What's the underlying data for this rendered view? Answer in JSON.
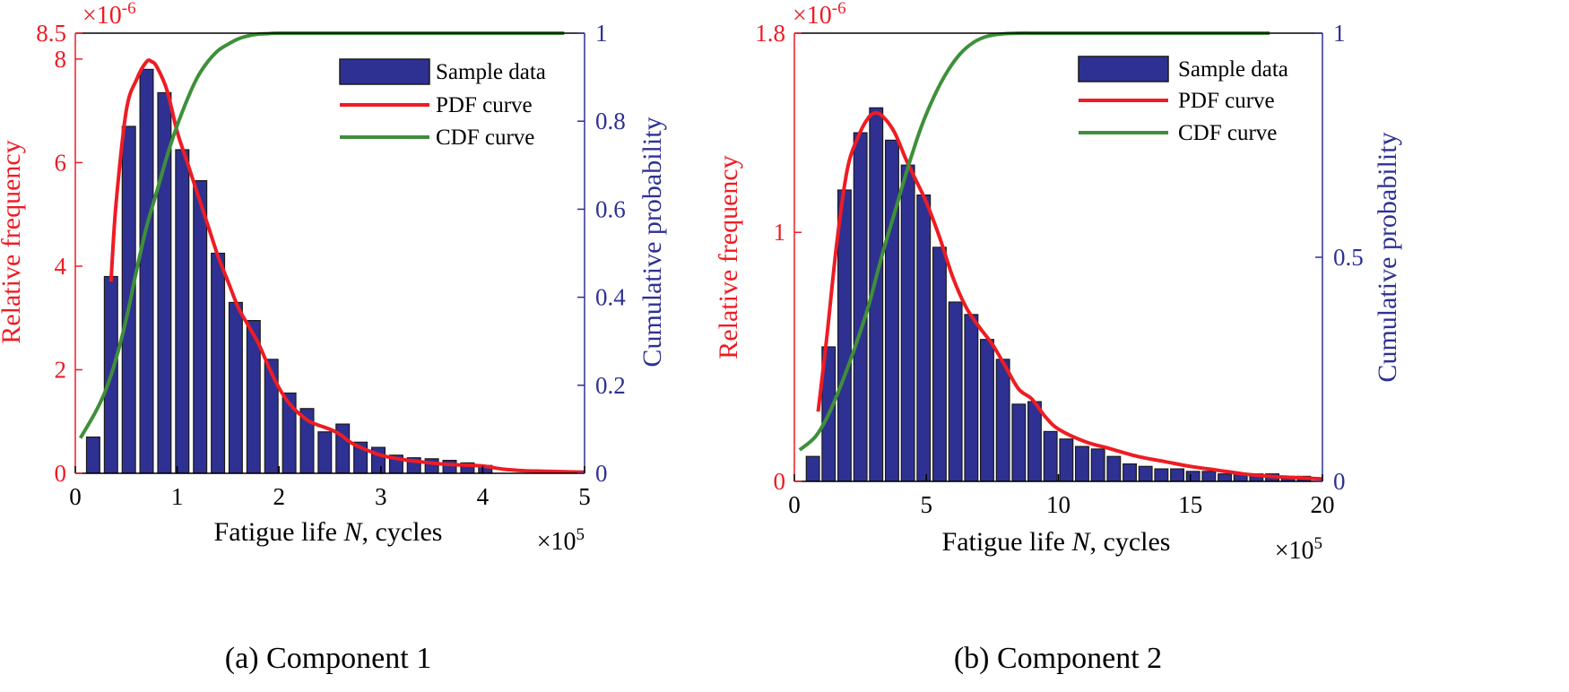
{
  "colors": {
    "bar_fill": "#2e3192",
    "bar_edge": "#1a1a1a",
    "pdf": "#ee1c24",
    "cdf": "#3f8f3a",
    "left_axis": "#ee1c24",
    "right_axis": "#2e3192",
    "frame": "#000000"
  },
  "chart_data": [
    {
      "type": "bar",
      "caption": "(a)  Component 1",
      "xlabel_text": "Fatigue life ",
      "xlabel_var": "N",
      "xlabel_rest": ", cycles",
      "x_multiplier": "×10",
      "x_multiplier_exp": "5",
      "ylabel_left": "Relative frequency",
      "ylabel_right": "Cumulative probability",
      "y_multiplier": "×10",
      "y_multiplier_exp": "-6",
      "xlim": [
        0,
        5
      ],
      "ylim_left": [
        0,
        8.5
      ],
      "ylim_right": [
        0,
        1
      ],
      "xticks": [
        0,
        1,
        2,
        3,
        4,
        5
      ],
      "xtick_labels": [
        "0",
        "1",
        "2",
        "3",
        "4",
        "5"
      ],
      "yticks_left": [
        0,
        2,
        4,
        6,
        8,
        8.5
      ],
      "ytick_labels_left": [
        "0",
        "2",
        "4",
        "6",
        "8",
        "8.5"
      ],
      "yticks_right": [
        0,
        0.2,
        0.4,
        0.6,
        0.8,
        1
      ],
      "ytick_labels_right": [
        "0",
        "0.2",
        "0.4",
        "0.6",
        "0.8",
        "1"
      ],
      "bar_width": 0.13,
      "series": [
        {
          "name": "Sample data",
          "kind": "bar",
          "x": [
            0.175,
            0.35,
            0.525,
            0.7,
            0.875,
            1.05,
            1.225,
            1.4,
            1.575,
            1.75,
            1.925,
            2.1,
            2.275,
            2.45,
            2.625,
            2.8,
            2.975,
            3.15,
            3.325,
            3.5,
            3.675,
            3.85,
            4.025
          ],
          "values": [
            0.7,
            3.8,
            6.7,
            7.8,
            7.35,
            6.25,
            5.65,
            4.25,
            3.3,
            2.95,
            2.2,
            1.55,
            1.25,
            0.8,
            0.95,
            0.6,
            0.5,
            0.35,
            0.3,
            0.28,
            0.25,
            0.2,
            0.15
          ]
        },
        {
          "name": "PDF curve",
          "kind": "line",
          "axis": "left",
          "x": [
            0.35,
            0.4,
            0.5,
            0.6,
            0.7,
            0.75,
            0.8,
            0.9,
            1.0,
            1.1,
            1.2,
            1.3,
            1.4,
            1.5,
            1.6,
            1.7,
            1.8,
            1.9,
            2.0,
            2.1,
            2.2,
            2.3,
            2.4,
            2.5,
            2.6,
            2.7,
            2.8,
            3.0,
            3.2,
            3.4,
            3.6,
            3.8,
            4.0,
            4.2,
            4.4,
            4.6,
            4.8,
            5.0
          ],
          "values": [
            3.7,
            5.2,
            7.0,
            7.6,
            7.95,
            7.95,
            7.85,
            7.4,
            6.6,
            6.0,
            5.4,
            4.8,
            4.2,
            3.7,
            3.2,
            2.85,
            2.5,
            2.05,
            1.65,
            1.35,
            1.15,
            1.0,
            0.92,
            0.85,
            0.75,
            0.6,
            0.5,
            0.35,
            0.27,
            0.22,
            0.18,
            0.16,
            0.14,
            0.08,
            0.05,
            0.04,
            0.03,
            0.02
          ]
        },
        {
          "name": "CDF curve",
          "kind": "line",
          "axis": "right",
          "x": [
            0.05,
            0.2,
            0.3,
            0.4,
            0.5,
            0.6,
            0.7,
            0.8,
            0.9,
            1.0,
            1.1,
            1.2,
            1.3,
            1.4,
            1.5,
            1.6,
            1.7,
            1.8,
            1.9,
            2.0,
            2.5,
            3.0,
            4.0,
            4.8
          ],
          "values": [
            0.08,
            0.14,
            0.19,
            0.26,
            0.35,
            0.46,
            0.56,
            0.64,
            0.72,
            0.79,
            0.85,
            0.9,
            0.935,
            0.96,
            0.975,
            0.987,
            0.994,
            0.998,
            0.999,
            1.0,
            1.0,
            1.0,
            1.0,
            1.0
          ]
        }
      ]
    },
    {
      "type": "bar",
      "caption": "(b)  Component 2",
      "xlabel_text": "Fatigue life ",
      "xlabel_var": "N",
      "xlabel_rest": ", cycles",
      "x_multiplier": "×10",
      "x_multiplier_exp": "5",
      "ylabel_left": "Relative frequency",
      "ylabel_right": "Cumulative probability",
      "y_multiplier": "×10",
      "y_multiplier_exp": "-6",
      "xlim": [
        0,
        20
      ],
      "ylim_left": [
        0,
        1.8
      ],
      "ylim_right": [
        0,
        1
      ],
      "xticks": [
        0,
        5,
        10,
        15,
        20
      ],
      "xtick_labels": [
        "0",
        "5",
        "10",
        "15",
        "20"
      ],
      "yticks_left": [
        0,
        1,
        1.8
      ],
      "ytick_labels_left": [
        "0",
        "1",
        "1.8"
      ],
      "yticks_right": [
        0,
        0.5,
        1
      ],
      "ytick_labels_right": [
        "0",
        "0.5",
        "1"
      ],
      "bar_width": 0.5,
      "series": [
        {
          "name": "Sample data",
          "kind": "bar",
          "x": [
            0.7,
            1.3,
            1.9,
            2.5,
            3.1,
            3.7,
            4.3,
            4.9,
            5.5,
            6.1,
            6.7,
            7.3,
            7.9,
            8.5,
            9.1,
            9.7,
            10.3,
            10.9,
            11.5,
            12.1,
            12.7,
            13.3,
            13.9,
            14.5,
            15.1,
            15.7,
            16.3,
            16.9,
            17.5,
            18.1,
            18.7,
            19.3
          ],
          "values": [
            0.1,
            0.54,
            1.17,
            1.4,
            1.5,
            1.37,
            1.27,
            1.15,
            0.94,
            0.72,
            0.67,
            0.57,
            0.49,
            0.31,
            0.32,
            0.2,
            0.17,
            0.14,
            0.13,
            0.1,
            0.07,
            0.06,
            0.05,
            0.05,
            0.04,
            0.04,
            0.03,
            0.03,
            0.03,
            0.03,
            0.02,
            0.02
          ]
        },
        {
          "name": "PDF curve",
          "kind": "line",
          "axis": "left",
          "x": [
            0.9,
            1.2,
            1.6,
            2.0,
            2.4,
            2.8,
            3.1,
            3.4,
            3.8,
            4.2,
            4.6,
            5.0,
            5.5,
            6.0,
            6.5,
            7.0,
            7.5,
            8.0,
            8.5,
            9.0,
            9.5,
            10.0,
            11.0,
            12.0,
            13.0,
            14.0,
            15.0,
            16.0,
            17.0,
            18.0,
            19.0,
            20.0
          ],
          "values": [
            0.28,
            0.55,
            0.95,
            1.25,
            1.38,
            1.46,
            1.48,
            1.46,
            1.4,
            1.3,
            1.21,
            1.12,
            0.98,
            0.82,
            0.7,
            0.62,
            0.55,
            0.46,
            0.37,
            0.33,
            0.26,
            0.21,
            0.16,
            0.13,
            0.1,
            0.08,
            0.06,
            0.045,
            0.03,
            0.02,
            0.015,
            0.01
          ]
        },
        {
          "name": "CDF curve",
          "kind": "line",
          "axis": "right",
          "x": [
            0.2,
            0.8,
            1.3,
            1.8,
            2.3,
            2.8,
            3.3,
            3.8,
            4.3,
            4.8,
            5.3,
            5.8,
            6.3,
            6.8,
            7.3,
            7.8,
            8.5,
            9.5,
            12.0,
            15.0,
            18.0
          ],
          "values": [
            0.07,
            0.1,
            0.15,
            0.22,
            0.3,
            0.39,
            0.5,
            0.6,
            0.7,
            0.79,
            0.86,
            0.915,
            0.955,
            0.98,
            0.993,
            0.998,
            1.0,
            1.0,
            1.0,
            1.0,
            1.0
          ]
        }
      ]
    }
  ]
}
